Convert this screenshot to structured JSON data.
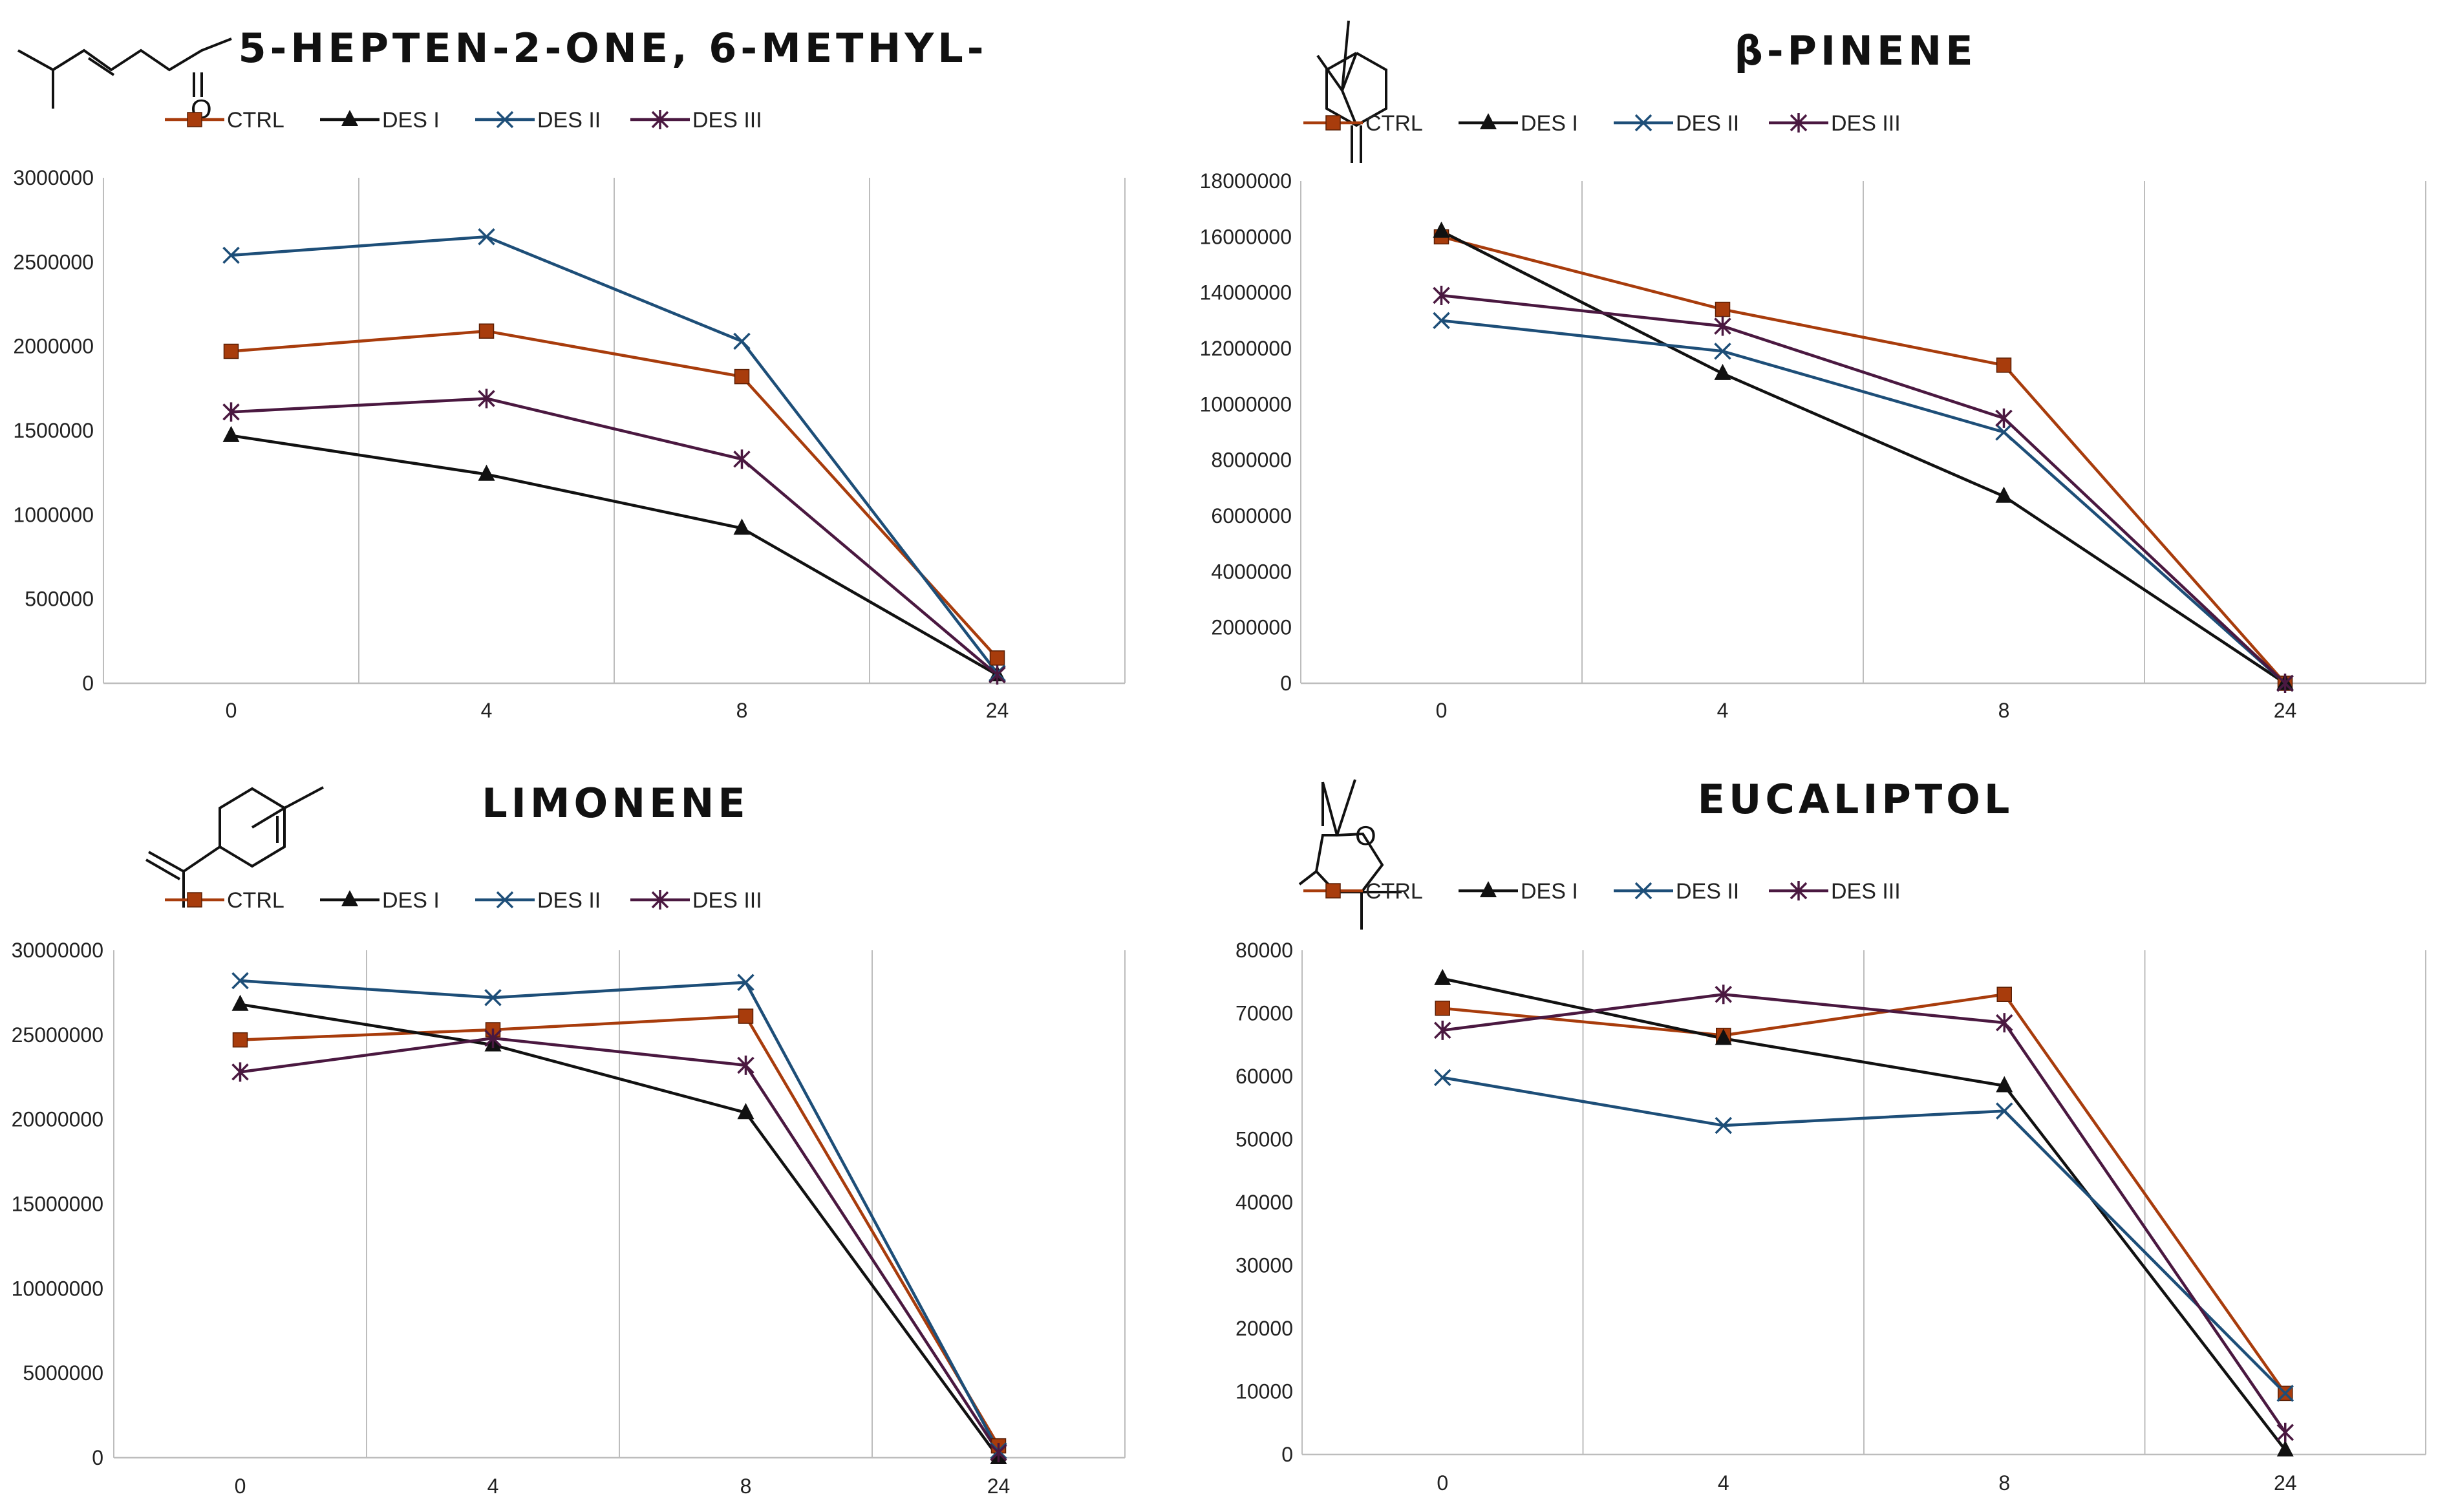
{
  "colors": {
    "ctrl": "#a83c0c",
    "des1": "#111111",
    "des2": "#1d4e78",
    "des3": "#4a1840"
  },
  "legend": [
    "CTRL",
    "DES I",
    "DES II",
    "DES III"
  ],
  "chart_data": [
    {
      "type": "line",
      "title": "5-HEPTEN-2-ONE, 6-METHYL-",
      "categories": [
        "0",
        "4",
        "8",
        "24"
      ],
      "ylim": [
        0,
        3000000
      ],
      "yticks": [
        "0",
        "500000",
        "1000000",
        "1500000",
        "2000000",
        "2500000",
        "3000000"
      ],
      "series": [
        {
          "name": "CTRL",
          "values": [
            1970000,
            2090000,
            1820000,
            150000
          ]
        },
        {
          "name": "DES I",
          "values": [
            1470000,
            1240000,
            920000,
            50000
          ]
        },
        {
          "name": "DES II",
          "values": [
            2540000,
            2650000,
            2030000,
            60000
          ]
        },
        {
          "name": "DES III",
          "values": [
            1610000,
            1690000,
            1330000,
            50000
          ]
        }
      ]
    },
    {
      "type": "line",
      "title": "β-PINENE",
      "categories": [
        "0",
        "4",
        "8",
        "24"
      ],
      "ylim": [
        0,
        18000000
      ],
      "yticks": [
        "0",
        "2000000",
        "4000000",
        "6000000",
        "8000000",
        "10000000",
        "12000000",
        "14000000",
        "16000000",
        "18000000"
      ],
      "series": [
        {
          "name": "CTRL",
          "values": [
            16000000,
            13400000,
            11400000,
            0
          ]
        },
        {
          "name": "DES I",
          "values": [
            16200000,
            11100000,
            6700000,
            0
          ]
        },
        {
          "name": "DES II",
          "values": [
            13000000,
            11900000,
            9000000,
            0
          ]
        },
        {
          "name": "DES III",
          "values": [
            13900000,
            12800000,
            9500000,
            0
          ]
        }
      ]
    },
    {
      "type": "line",
      "title": "LIMONENE",
      "categories": [
        "0",
        "4",
        "8",
        "24"
      ],
      "ylim": [
        0,
        30000000
      ],
      "yticks": [
        "0",
        "5000000",
        "10000000",
        "15000000",
        "20000000",
        "25000000",
        "30000000"
      ],
      "series": [
        {
          "name": "CTRL",
          "values": [
            24700000,
            25300000,
            26100000,
            700000
          ]
        },
        {
          "name": "DES I",
          "values": [
            26800000,
            24400000,
            20400000,
            0
          ]
        },
        {
          "name": "DES II",
          "values": [
            28200000,
            27200000,
            28100000,
            400000
          ]
        },
        {
          "name": "DES III",
          "values": [
            22800000,
            24800000,
            23200000,
            300000
          ]
        }
      ]
    },
    {
      "type": "line",
      "title": "EUCALIPTOL",
      "categories": [
        "0",
        "4",
        "8",
        "24"
      ],
      "ylim": [
        0,
        80000
      ],
      "yticks": [
        "0",
        "10000",
        "20000",
        "30000",
        "40000",
        "50000",
        "60000",
        "70000",
        "80000"
      ],
      "series": [
        {
          "name": "CTRL",
          "values": [
            70800,
            66500,
            73000,
            9700
          ]
        },
        {
          "name": "DES I",
          "values": [
            75500,
            66000,
            58500,
            700
          ]
        },
        {
          "name": "DES II",
          "values": [
            59800,
            52200,
            54500,
            9700
          ]
        },
        {
          "name": "DES III",
          "values": [
            67300,
            73000,
            68500,
            3500
          ]
        }
      ]
    }
  ]
}
